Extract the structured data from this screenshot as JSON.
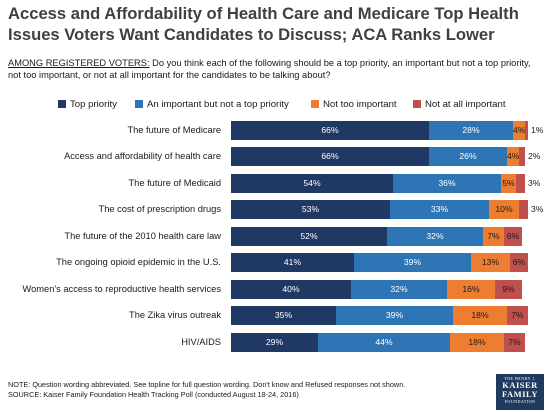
{
  "title": "Access and Affordability of Health Care and Medicare Top Health Issues Voters Want Candidates to Discuss; ACA Ranks Lower",
  "question": {
    "scope": "AMONG REGISTERED VOTERS:",
    "text": "Do you think each of the following should be a top priority, an important but not a top priority, not too important, or not at all important for the candidates to be talking about?"
  },
  "colors": {
    "top_priority": "#1f3864",
    "important": "#2e75b6",
    "not_too": "#ed7d31",
    "not_at_all": "#c0504d"
  },
  "chart_data": {
    "type": "bar",
    "orientation": "horizontal",
    "stacked": true,
    "categories": [
      "The future of Medicare",
      "Access and affordability of health care",
      "The future of Medicaid",
      "The cost of prescription drugs",
      "The future of the 2010 health care law",
      "The ongoing opioid epidemic in the U.S.",
      "Women's access to reproductive health services",
      "The Zika virus outreak",
      "HIV/AIDS"
    ],
    "series": [
      {
        "name": "Top priority",
        "key": "top_priority",
        "values": [
          66,
          66,
          54,
          53,
          52,
          41,
          40,
          35,
          29
        ]
      },
      {
        "name": "An important but not a top priority",
        "key": "important",
        "values": [
          28,
          26,
          36,
          33,
          32,
          39,
          32,
          39,
          44
        ]
      },
      {
        "name": "Not too important",
        "key": "not_too",
        "values": [
          4,
          4,
          5,
          10,
          7,
          13,
          16,
          18,
          18
        ]
      },
      {
        "name": "Not at all important",
        "key": "not_at_all",
        "values": [
          1,
          2,
          3,
          3,
          6,
          6,
          9,
          7,
          7
        ]
      }
    ],
    "value_suffix": "%",
    "xlim": [
      0,
      100
    ],
    "grid": false,
    "legend_position": "top"
  },
  "footer": {
    "note": "NOTE: Question wording abbreviated. See topline for full question wording. Don't know and Refused responses not shown.",
    "source": "SOURCE: Kaiser Family Foundation Health Tracking Poll (conducted August 18-24, 2016)"
  },
  "logo": {
    "line1": "THE HENRY J.",
    "line2a": "KAISER",
    "line2b": "FAMILY",
    "line3": "FOUNDATION"
  }
}
